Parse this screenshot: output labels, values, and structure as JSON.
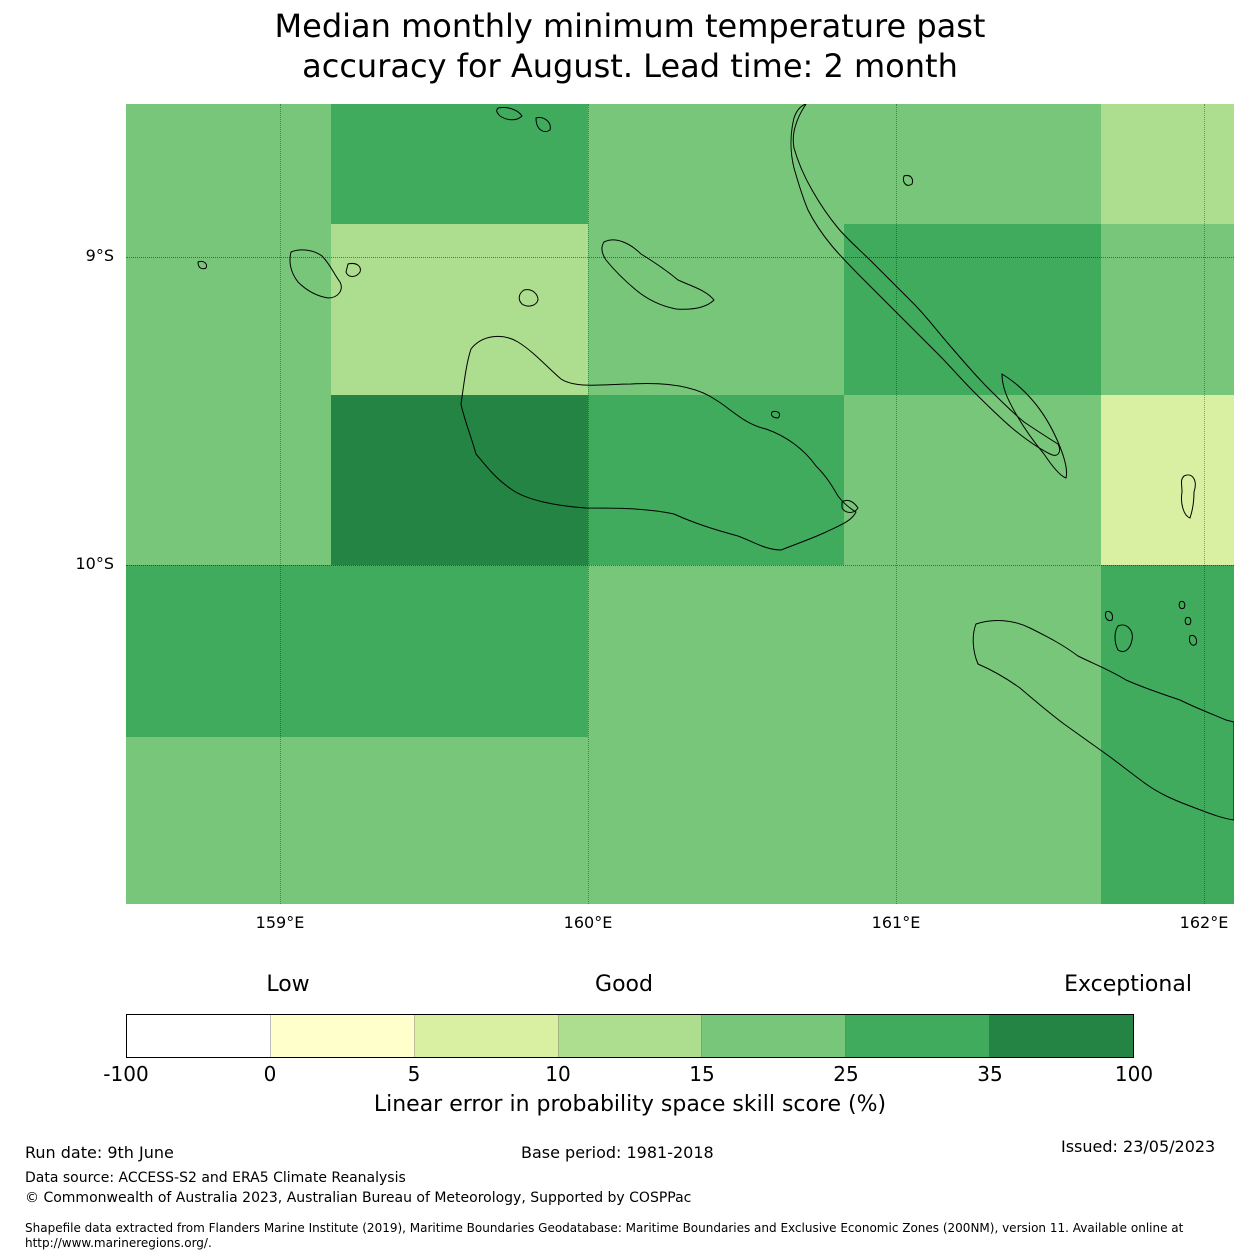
{
  "title_line1": "Median monthly minimum temperature past",
  "title_line2": "accuracy for August. Lead time: 2 month",
  "map": {
    "lat_labels": [
      "9°S",
      "10°S"
    ],
    "lon_labels": [
      "159°E",
      "160°E",
      "161°E",
      "162°E"
    ],
    "colors": {
      "c5_10": "#d9f0a3",
      "c10_15": "#addd8e",
      "c15_25": "#78c679",
      "c25_35": "#41ab5d",
      "c35_100": "#238443"
    }
  },
  "legend": {
    "categories": [
      "Low",
      "Good",
      "Exceptional"
    ],
    "colors": [
      "#ffffff",
      "#ffffcc",
      "#d9f0a3",
      "#addd8e",
      "#78c679",
      "#41ab5d",
      "#238443"
    ],
    "ticks": [
      "-100",
      "0",
      "5",
      "10",
      "15",
      "25",
      "35",
      "100"
    ],
    "label": "Linear error in probability space skill score (%)"
  },
  "footer": {
    "run_date": "Run date: 9th June",
    "base_period": "Base period: 1981-2018",
    "issued": "Issued: 23/05/2023",
    "data_source": "Data source: ACCESS-S2 and ERA5 Climate Reanalysis",
    "copyright": "© Commonwealth of Australia 2023, Australian Bureau of Meteorology, Supported by COSPPac",
    "shapefile_line1": "Shapefile data extracted from Flanders Marine Institute (2019), Maritime Boundaries Geodatabase: Maritime Boundaries and Exclusive Economic Zones (200NM), version 11. Available online at",
    "shapefile_line2": "http://www.marineregions.org/."
  }
}
